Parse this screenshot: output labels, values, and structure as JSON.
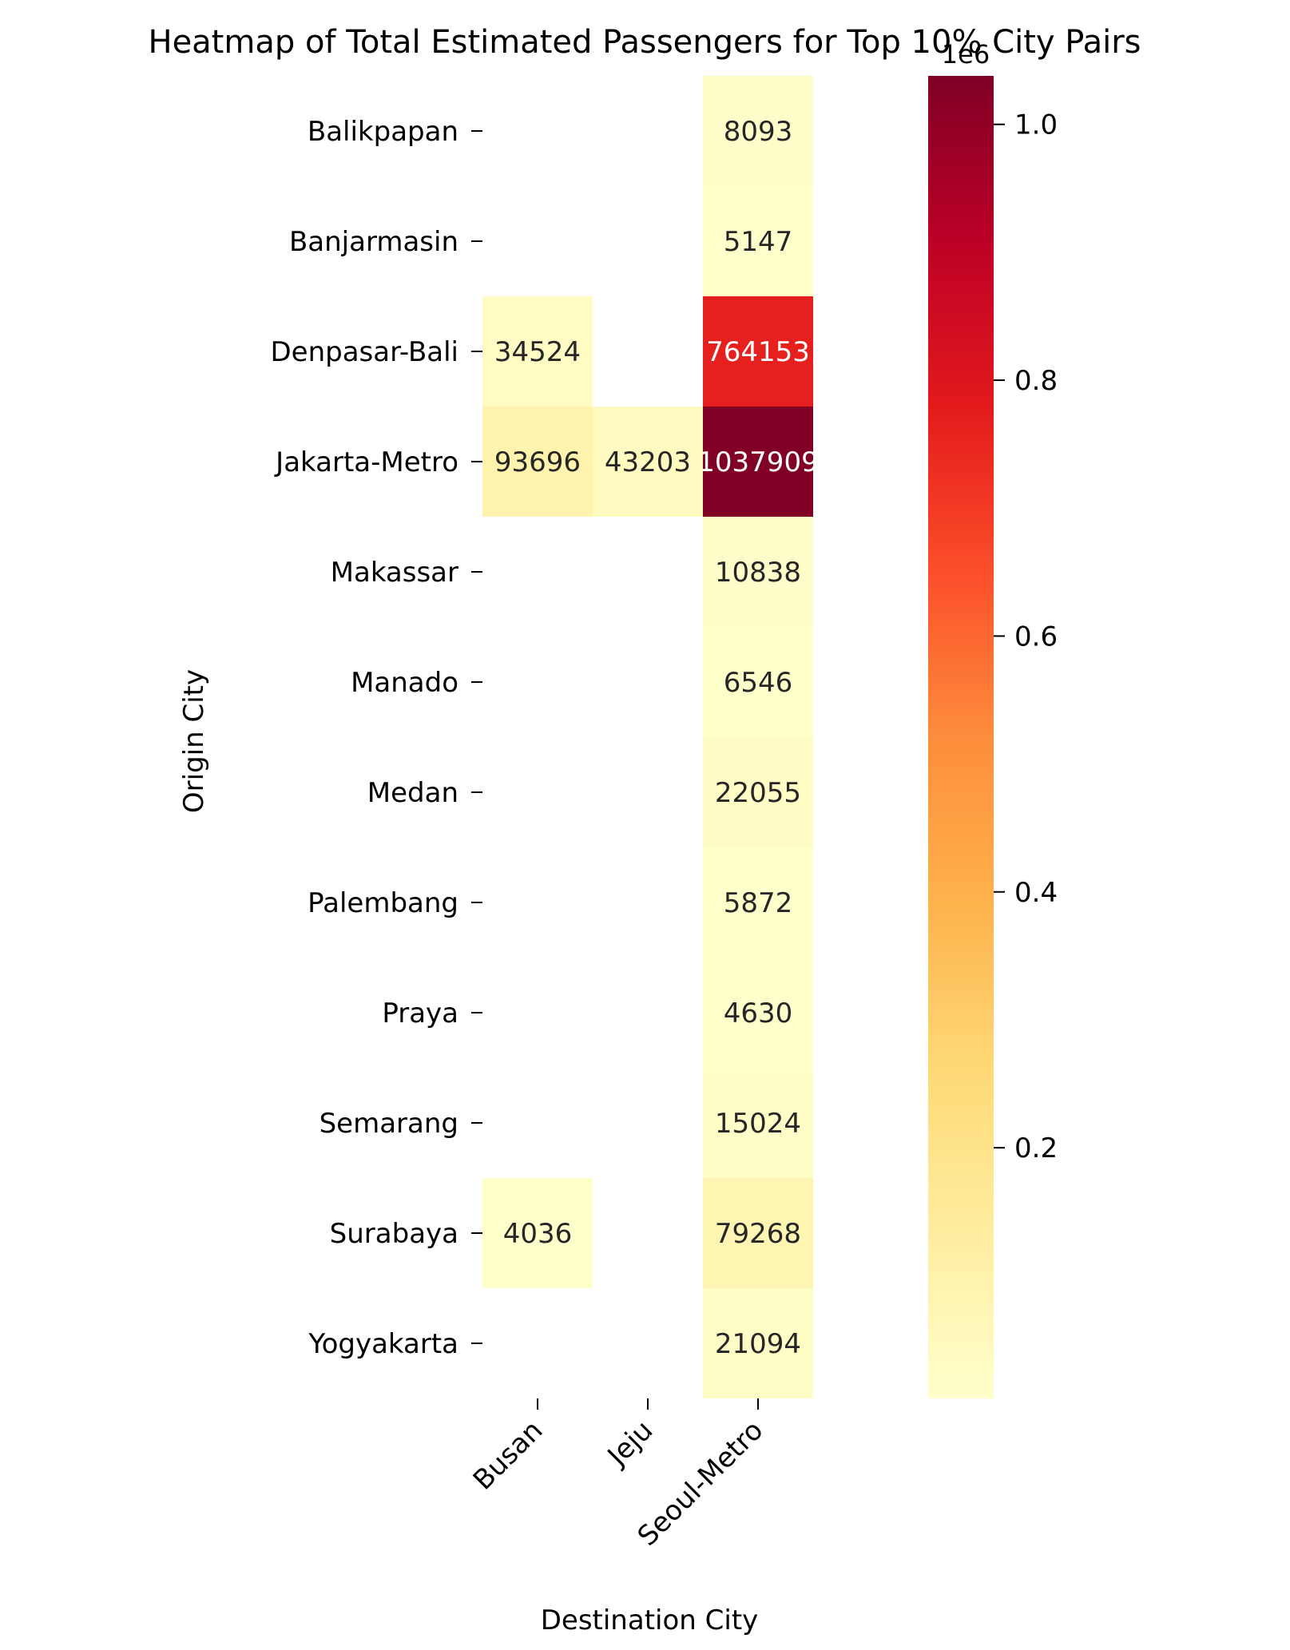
{
  "chart_data": {
    "type": "heatmap",
    "title": "Heatmap of Total Estimated Passengers for Top 10% City Pairs",
    "xlabel": "Destination City",
    "ylabel": "Origin City",
    "x_categories": [
      "Busan",
      "Jeju",
      "Seoul-Metro"
    ],
    "y_categories": [
      "Balikpapan",
      "Banjarmasin",
      "Denpasar-Bali",
      "Jakarta-Metro",
      "Makassar",
      "Manado",
      "Medan",
      "Palembang",
      "Praya",
      "Semarang",
      "Surabaya",
      "Yogyakarta"
    ],
    "cells": [
      {
        "row": "Balikpapan",
        "col": "Seoul-Metro",
        "value": 8093,
        "label": "8093"
      },
      {
        "row": "Banjarmasin",
        "col": "Seoul-Metro",
        "value": 5147,
        "label": "5147"
      },
      {
        "row": "Denpasar-Bali",
        "col": "Busan",
        "value": 34524,
        "label": "34524"
      },
      {
        "row": "Denpasar-Bali",
        "col": "Seoul-Metro",
        "value": 764153,
        "label": "764153"
      },
      {
        "row": "Jakarta-Metro",
        "col": "Busan",
        "value": 93696,
        "label": "93696"
      },
      {
        "row": "Jakarta-Metro",
        "col": "Jeju",
        "value": 43203,
        "label": "43203"
      },
      {
        "row": "Jakarta-Metro",
        "col": "Seoul-Metro",
        "value": 1037909,
        "label": "1037909"
      },
      {
        "row": "Makassar",
        "col": "Seoul-Metro",
        "value": 10838,
        "label": "10838"
      },
      {
        "row": "Manado",
        "col": "Seoul-Metro",
        "value": 6546,
        "label": "6546"
      },
      {
        "row": "Medan",
        "col": "Seoul-Metro",
        "value": 22055,
        "label": "22055"
      },
      {
        "row": "Palembang",
        "col": "Seoul-Metro",
        "value": 5872,
        "label": "5872"
      },
      {
        "row": "Praya",
        "col": "Seoul-Metro",
        "value": 4630,
        "label": "4630"
      },
      {
        "row": "Semarang",
        "col": "Seoul-Metro",
        "value": 15024,
        "label": "15024"
      },
      {
        "row": "Surabaya",
        "col": "Busan",
        "value": 4036,
        "label": "4036"
      },
      {
        "row": "Surabaya",
        "col": "Seoul-Metro",
        "value": 79268,
        "label": "79268"
      },
      {
        "row": "Yogyakarta",
        "col": "Seoul-Metro",
        "value": 21094,
        "label": "21094"
      }
    ],
    "colorbar": {
      "label": "",
      "offset_text": "1e6",
      "ticks": [
        0.2,
        0.4,
        0.6,
        0.8,
        1.0
      ],
      "tick_labels": [
        "0.2",
        "0.4",
        "0.6",
        "0.8",
        "1.0"
      ],
      "multiplier": 1000000,
      "range": [
        4036,
        1037909
      ]
    },
    "colormap": "YlOrRd",
    "colormap_stops": [
      "#ffffcc",
      "#ffeda0",
      "#fed976",
      "#feb24c",
      "#fd8d3c",
      "#fc4e2a",
      "#e31a1c",
      "#bd0026",
      "#800026"
    ],
    "annotation_colors": {
      "dark_text": "#262626",
      "light_text": "#ffffff"
    }
  }
}
